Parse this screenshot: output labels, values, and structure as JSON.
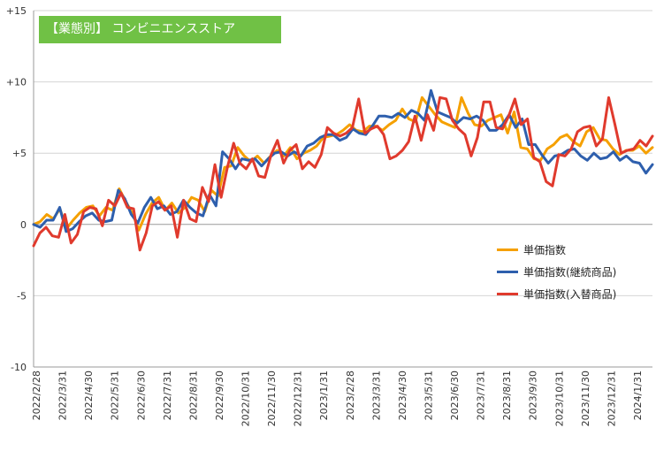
{
  "title": "【業態別】 コンビニエンスストア",
  "chart_data": {
    "type": "line",
    "ylim": [
      -10,
      15
    ],
    "yticks": [
      -10,
      -5,
      0,
      5,
      10,
      15
    ],
    "ytick_labels": [
      "-10",
      "-5",
      "0",
      "+5",
      "+10",
      "+15"
    ],
    "xtick_labels": [
      "2022/2/28",
      "2022/3/31",
      "2022/4/30",
      "2022/5/31",
      "2022/6/30",
      "2022/7/31",
      "2022/8/31",
      "2022/9/30",
      "2022/10/31",
      "2022/11/30",
      "2022/12/31",
      "2023/1/31",
      "2023/2/28",
      "2023/3/31",
      "2023/4/30",
      "2023/5/31",
      "2023/6/30",
      "2023/7/31",
      "2023/8/31",
      "2023/9/30",
      "2023/10/31",
      "2023/11/30",
      "2023/12/31",
      "2024/1/31"
    ],
    "grid": "horizontal",
    "legend_position": "right",
    "series": [
      {
        "name": "単価指数",
        "color": "#f5a000",
        "values": [
          0.0,
          0.2,
          0.7,
          0.4,
          1.1,
          -0.3,
          0.3,
          0.8,
          1.2,
          1.3,
          0.6,
          1.2,
          1.0,
          2.5,
          1.6,
          0.8,
          -0.4,
          0.7,
          1.5,
          1.9,
          1.0,
          1.5,
          0.8,
          1.2,
          1.9,
          1.7,
          0.9,
          2.4,
          2.0,
          4.0,
          4.1,
          5.4,
          4.8,
          4.4,
          4.8,
          4.3,
          4.8,
          5.2,
          4.8,
          5.4,
          4.6,
          5.0,
          5.2,
          5.5,
          6.1,
          6.2,
          6.3,
          6.6,
          7.0,
          6.6,
          6.5,
          6.9,
          6.9,
          6.6,
          7.0,
          7.3,
          8.1,
          7.4,
          7.2,
          8.9,
          8.3,
          7.7,
          7.2,
          7.0,
          6.8,
          8.9,
          7.8,
          7.0,
          6.9,
          7.3,
          7.5,
          7.7,
          6.4,
          7.9,
          5.4,
          5.3,
          4.6,
          4.5,
          5.3,
          5.6,
          6.1,
          6.3,
          5.8,
          5.5,
          6.5,
          6.8,
          6.0,
          5.9,
          5.3,
          4.9,
          5.2,
          5.2,
          5.5,
          5.0,
          5.4
        ]
      },
      {
        "name": "単価指数(継続商品)",
        "color": "#2e5fad",
        "values": [
          0.0,
          -0.2,
          0.3,
          0.3,
          1.2,
          -0.5,
          -0.3,
          0.2,
          0.6,
          0.8,
          0.3,
          0.2,
          0.3,
          2.4,
          1.8,
          0.7,
          0.1,
          1.2,
          1.9,
          1.1,
          1.3,
          0.7,
          0.9,
          1.7,
          1.2,
          0.8,
          0.6,
          2.1,
          1.3,
          5.1,
          4.6,
          3.9,
          4.6,
          4.5,
          4.6,
          4.1,
          4.6,
          5.0,
          5.1,
          4.8,
          5.1,
          4.8,
          5.5,
          5.7,
          6.1,
          6.3,
          6.3,
          5.9,
          6.1,
          6.7,
          6.4,
          6.3,
          6.9,
          7.6,
          7.6,
          7.5,
          7.8,
          7.5,
          8.0,
          7.8,
          7.3,
          9.4,
          7.9,
          7.7,
          7.5,
          7.1,
          7.5,
          7.4,
          7.6,
          7.3,
          6.6,
          6.6,
          7.0,
          7.7,
          6.8,
          7.4,
          5.6,
          5.6,
          4.9,
          4.3,
          4.8,
          4.9,
          5.2,
          5.3,
          4.8,
          4.5,
          5.0,
          4.6,
          4.7,
          5.1,
          4.5,
          4.8,
          4.4,
          4.3,
          3.6,
          4.2
        ]
      },
      {
        "name": "単価指数(入替商品)",
        "color": "#e03a2d",
        "values": [
          -1.5,
          -0.6,
          -0.2,
          -0.8,
          -0.9,
          0.7,
          -1.3,
          -0.7,
          0.9,
          1.2,
          1.1,
          -0.1,
          1.7,
          1.3,
          2.2,
          1.2,
          1.1,
          -1.8,
          -0.6,
          1.3,
          1.6,
          1.0,
          1.3,
          -0.9,
          1.7,
          0.4,
          0.2,
          2.6,
          1.6,
          4.2,
          1.9,
          4.0,
          5.7,
          4.3,
          3.9,
          4.6,
          3.4,
          3.3,
          4.9,
          5.9,
          4.3,
          5.2,
          5.6,
          3.9,
          4.4,
          4.0,
          4.9,
          6.8,
          6.4,
          6.2,
          6.4,
          6.8,
          8.8,
          6.4,
          6.7,
          6.9,
          6.3,
          4.6,
          4.8,
          5.2,
          5.8,
          7.6,
          5.9,
          7.7,
          6.6,
          8.9,
          8.8,
          7.3,
          6.7,
          6.3,
          4.8,
          6.1,
          8.6,
          8.6,
          6.8,
          6.7,
          7.6,
          8.8,
          7.0,
          7.4,
          4.7,
          4.4,
          3.0,
          2.7,
          4.9,
          4.8,
          5.3,
          6.5,
          6.8,
          6.9,
          5.5,
          6.0,
          8.9,
          7.0,
          5.0,
          5.2,
          5.3,
          5.9,
          5.5,
          6.2
        ]
      }
    ]
  }
}
